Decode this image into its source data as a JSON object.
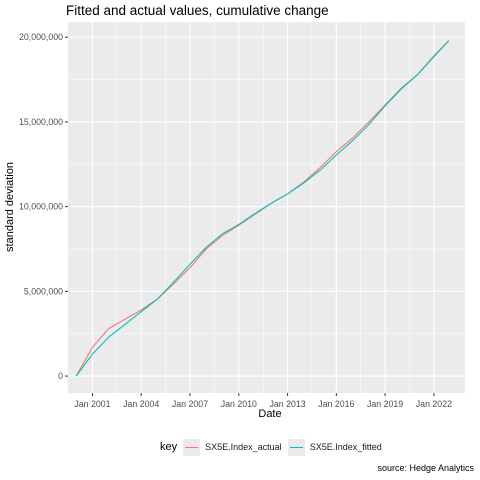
{
  "chart_data": {
    "type": "line",
    "title": "Fitted and actual values, cumulative change",
    "xlabel": "Date",
    "ylabel": "standard deviation",
    "caption": "source: Hedge Analytics",
    "x_type": "date",
    "xlim": [
      "1999-07-01",
      "2023-12-01"
    ],
    "ylim": [
      -1000000,
      20900000
    ],
    "x_ticks": [
      "2001-01-01",
      "2004-01-01",
      "2007-01-01",
      "2010-01-01",
      "2013-01-01",
      "2016-01-01",
      "2019-01-01",
      "2022-01-01"
    ],
    "x_tick_labels": [
      "Jan 2001",
      "Jan 2004",
      "Jan 2007",
      "Jan 2010",
      "Jan 2013",
      "Jan 2016",
      "Jan 2019",
      "Jan 2022"
    ],
    "y_ticks": [
      0,
      5000000,
      10000000,
      15000000,
      20000000
    ],
    "y_tick_labels": [
      "0",
      "5,000,000",
      "10,000,000",
      "15,000,000",
      "20,000,000"
    ],
    "grid": true,
    "legend": {
      "title": "key",
      "position": "bottom"
    },
    "x": [
      "2000-01-01",
      "2001-01-01",
      "2002-01-01",
      "2003-01-01",
      "2004-01-01",
      "2005-01-01",
      "2006-01-01",
      "2007-01-01",
      "2008-01-01",
      "2009-01-01",
      "2010-01-01",
      "2011-01-01",
      "2012-01-01",
      "2013-01-01",
      "2014-01-01",
      "2015-01-01",
      "2016-01-01",
      "2017-01-01",
      "2018-01-01",
      "2019-01-01",
      "2020-01-01",
      "2021-01-01",
      "2022-01-01",
      "2022-12-01"
    ],
    "series": [
      {
        "name": "SX5E.Index_actual",
        "color": "#F8766D",
        "values": [
          0,
          1700000,
          2800000,
          3350000,
          3900000,
          4550000,
          5450000,
          6400000,
          7500000,
          8300000,
          8900000,
          9550000,
          10200000,
          10750000,
          11450000,
          12300000,
          13250000,
          14050000,
          15000000,
          16000000,
          17000000,
          17800000,
          18900000,
          19800000
        ]
      },
      {
        "name": "SX5E.Index_fitted",
        "color": "#00BFC4",
        "values": [
          0,
          1300000,
          2300000,
          3050000,
          3800000,
          4550000,
          5550000,
          6600000,
          7600000,
          8400000,
          8950000,
          9600000,
          10200000,
          10750000,
          11400000,
          12150000,
          13050000,
          13900000,
          14850000,
          15950000,
          16950000,
          17800000,
          18850000,
          19800000
        ]
      }
    ]
  }
}
